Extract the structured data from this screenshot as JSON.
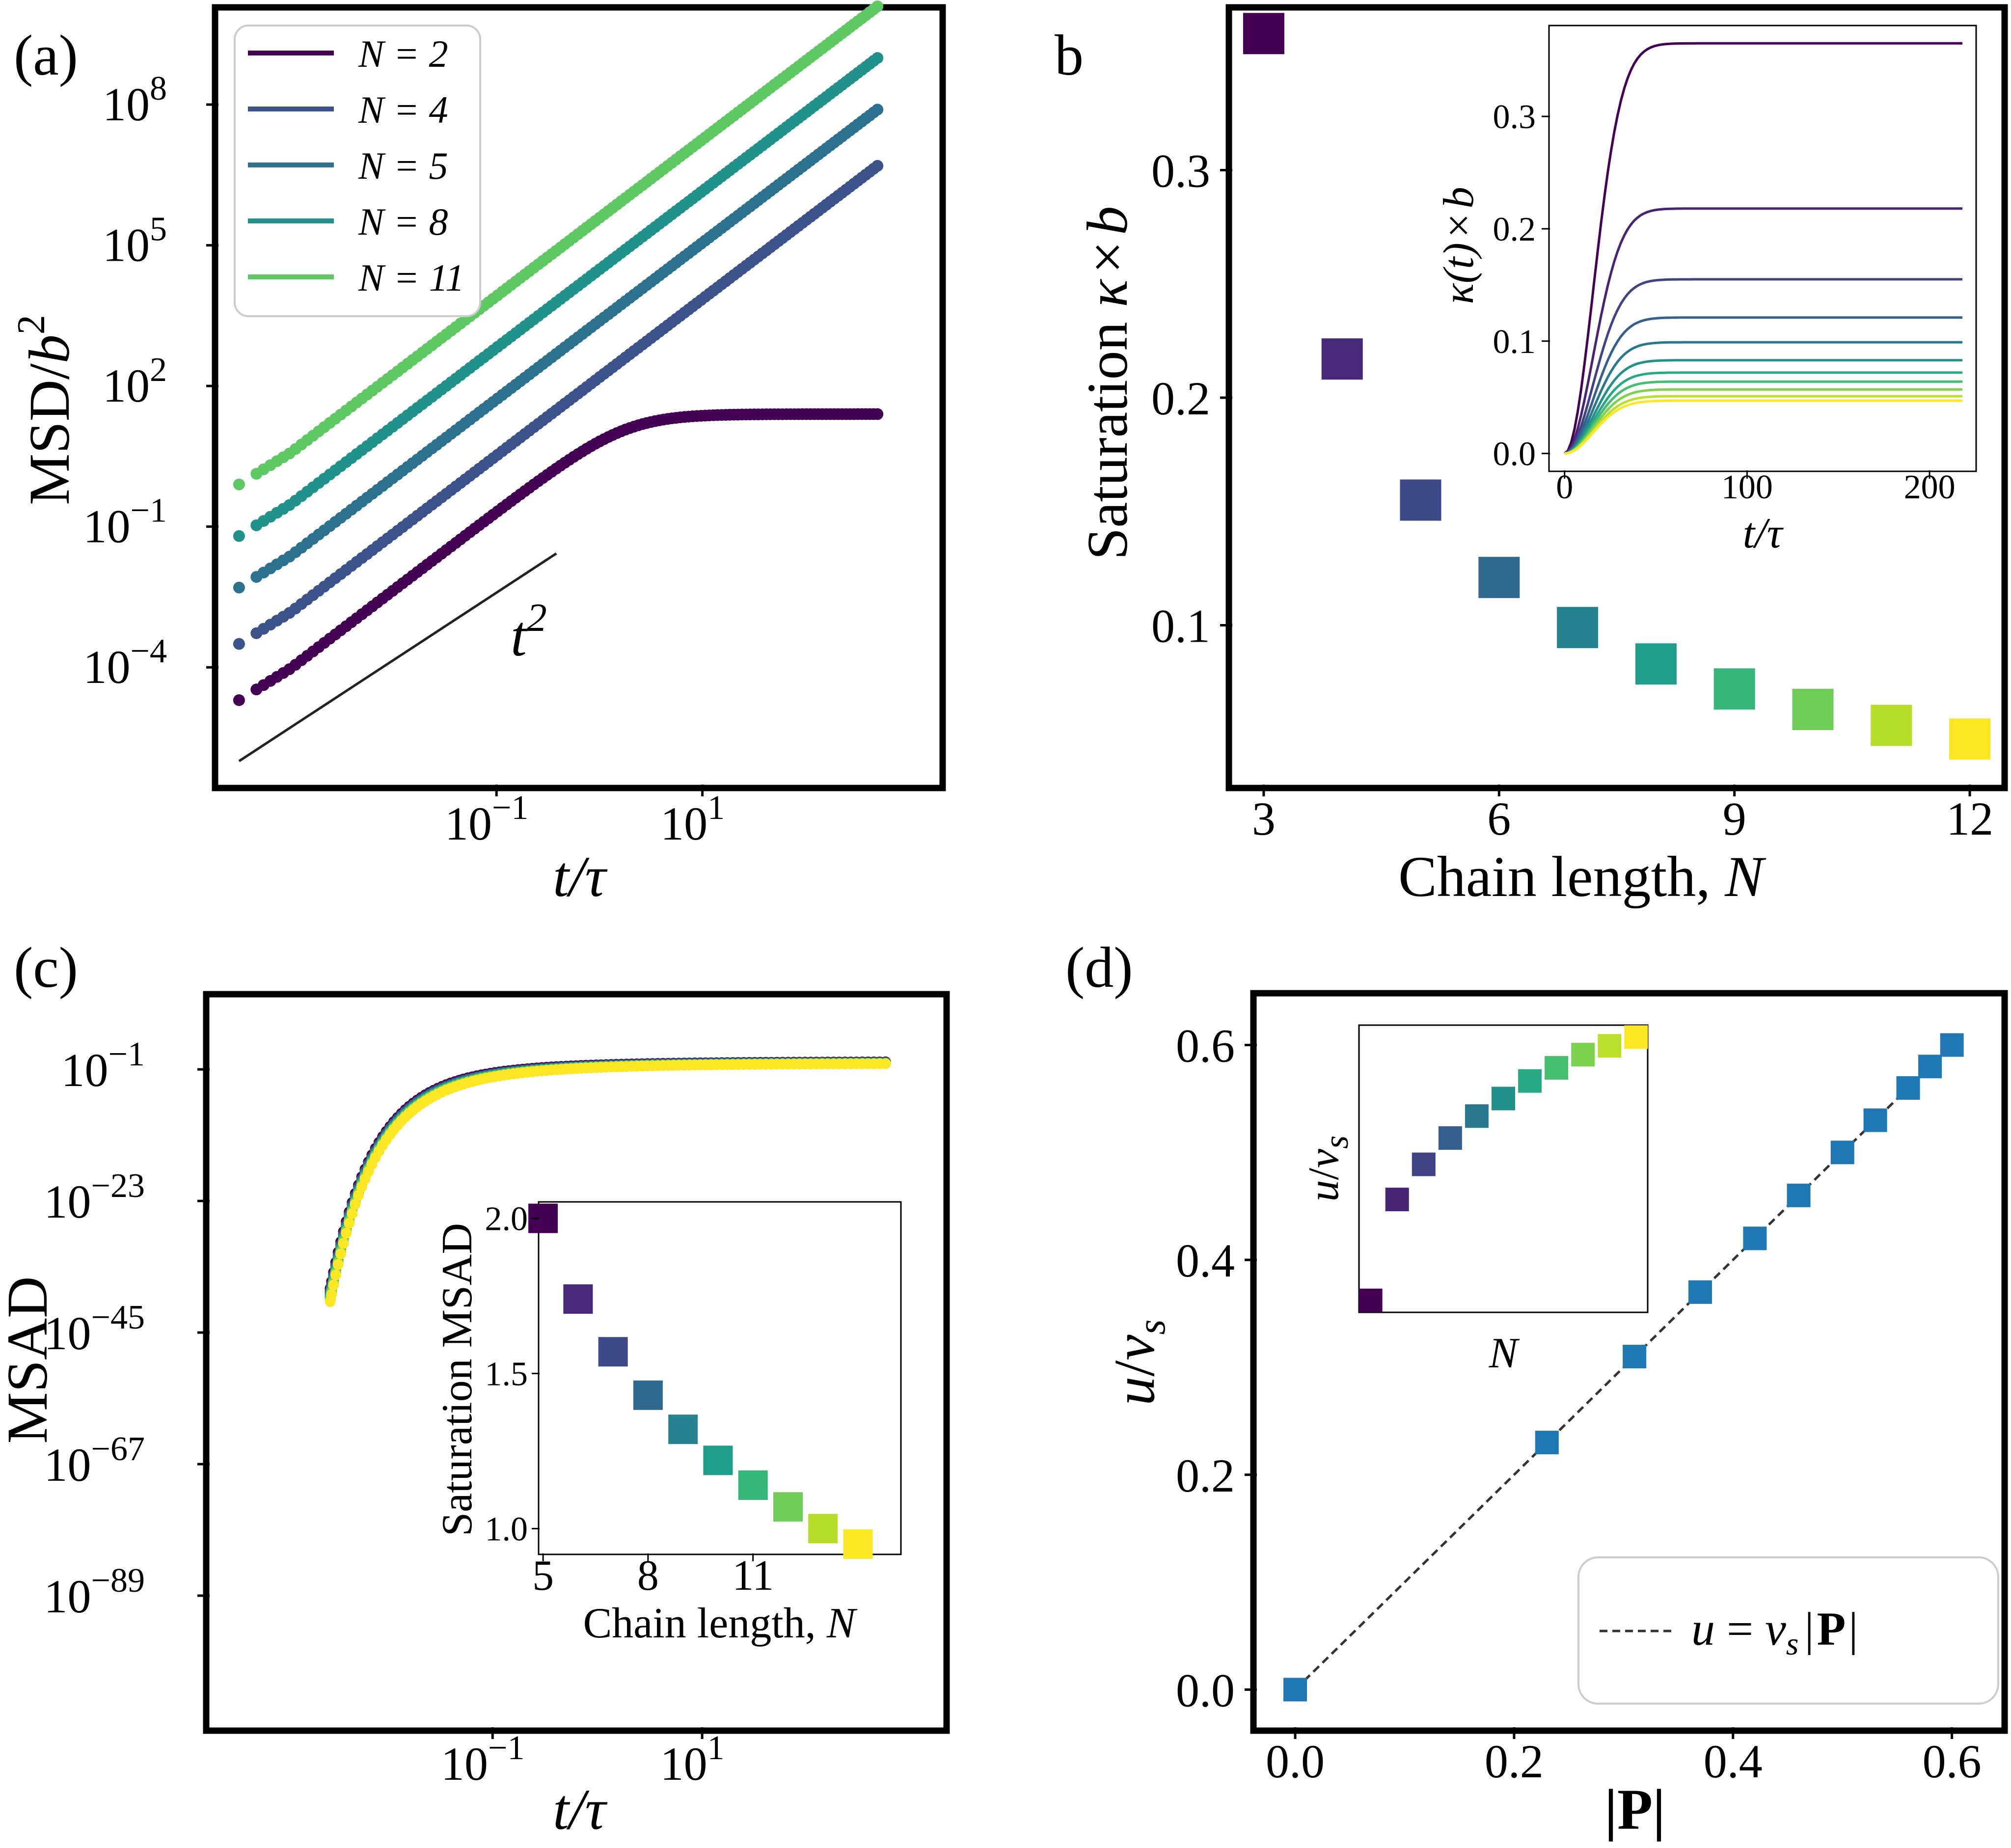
{
  "viridis": [
    "#440154",
    "#482878",
    "#3e4989",
    "#31688e",
    "#26828e",
    "#1f9e89",
    "#35b779",
    "#6ece58",
    "#b5de2b",
    "#fde725"
  ],
  "chart_data": [
    {
      "panel": "(a)",
      "type": "scatter",
      "title": "",
      "xlabel": "t/τ",
      "ylabel": "MSD/b²",
      "xscale": "log",
      "yscale": "log",
      "xlim_log10": [
        -3.7,
        3.3
      ],
      "ylim_log10": [
        -6.5,
        10.0
      ],
      "xticks": [
        {
          "exp": "-1",
          "label": "10",
          "sup": "−1"
        },
        {
          "exp": "1",
          "label": "10",
          "sup": "1"
        }
      ],
      "yticks": [
        {
          "exp": "-4",
          "label": "10",
          "sup": "−4"
        },
        {
          "exp": "-1",
          "label": "10",
          "sup": "−1"
        },
        {
          "exp": "2",
          "label": "10",
          "sup": "2"
        },
        {
          "exp": "5",
          "label": "10",
          "sup": "5"
        },
        {
          "exp": "8",
          "label": "10",
          "sup": "8"
        }
      ],
      "legend_position": "top-left",
      "series": [
        {
          "name": "N = 2",
          "N": "2",
          "color": "#440154",
          "log_t_start": -3.5,
          "log_t_end": 2.7,
          "log_msd_start": -4.7,
          "plateau_log_msd": 1.4
        },
        {
          "name": "N = 4",
          "N": "4",
          "color": "#3b528b",
          "log_t_start": -3.5,
          "log_t_end": 2.7,
          "log_msd_start": -3.5,
          "plateau_log_msd": null
        },
        {
          "name": "N = 5",
          "N": "5",
          "color": "#2c728e",
          "log_t_start": -3.5,
          "log_t_end": 2.7,
          "log_msd_start": -2.3,
          "plateau_log_msd": null
        },
        {
          "name": "N = 8",
          "N": "8",
          "color": "#21918c",
          "log_t_start": -3.5,
          "log_t_end": 2.7,
          "log_msd_start": -1.2,
          "plateau_log_msd": null
        },
        {
          "name": "N = 11",
          "N": "11",
          "color": "#5ec962",
          "log_t_start": -3.5,
          "log_t_end": 2.7,
          "log_msd_start": -0.1,
          "plateau_log_msd": null
        }
      ],
      "reference_line": {
        "label": "t",
        "sup": "2",
        "slope": 2,
        "log_t": [
          -3.5,
          -0.8
        ],
        "log_msd_start": -6.0
      }
    },
    {
      "panel": "(b)",
      "type": "scatter",
      "title": "",
      "xlabel": "Chain length, N",
      "ylabel": "Saturation κ × b",
      "xlim": [
        2.6,
        12.4
      ],
      "ylim": [
        0.03,
        0.37
      ],
      "xticks": [
        "3",
        "6",
        "9",
        "12"
      ],
      "yticks": [
        "0.1",
        "0.2",
        "0.3"
      ],
      "x": [
        3,
        4,
        5,
        6,
        7,
        8,
        9,
        10,
        11,
        12
      ],
      "y": [
        0.36,
        0.217,
        0.155,
        0.121,
        0.099,
        0.083,
        0.072,
        0.063,
        0.056,
        0.05
      ],
      "inset": {
        "type": "line",
        "xlabel": "t/τ",
        "ylabel": "κ(t) × b",
        "xlim": [
          -8,
          225
        ],
        "ylim": [
          -0.015,
          0.38
        ],
        "xticks": [
          "0",
          "100",
          "200"
        ],
        "yticks": [
          "0.0",
          "0.1",
          "0.2",
          "0.3"
        ],
        "t_end": 218,
        "time_constant": 22,
        "saturation": [
          0.365,
          0.218,
          0.155,
          0.121,
          0.099,
          0.083,
          0.072,
          0.064,
          0.057,
          0.051,
          0.047
        ]
      }
    },
    {
      "panel": "(c)",
      "type": "scatter",
      "title": "",
      "xlabel": "t/τ",
      "ylabel": "MSAD",
      "xscale": "log",
      "yscale": "log",
      "xlim_log10": [
        -3.7,
        3.3
      ],
      "ylim_log10": [
        -111,
        11
      ],
      "xticks": [
        {
          "exp": "-1",
          "label": "10",
          "sup": "−1"
        },
        {
          "exp": "1",
          "label": "10",
          "sup": "1"
        }
      ],
      "yticks": [
        {
          "exp": "-89",
          "label": "10",
          "sup": "−89"
        },
        {
          "exp": "-67",
          "label": "10",
          "sup": "−67"
        },
        {
          "exp": "-45",
          "label": "10",
          "sup": "−45"
        },
        {
          "exp": "-23",
          "label": "10",
          "sup": "−23"
        },
        {
          "exp": "-1",
          "label": "10",
          "sup": "−1"
        }
      ],
      "saturation_log10": [
        0.3,
        0.2,
        0.15,
        0.1,
        0.05,
        0.0
      ],
      "inset": {
        "xlabel": "Chain length, N",
        "ylabel": "Saturation MSAD",
        "xlim": [
          4.9,
          15.2
        ],
        "ylim": [
          0.92,
          2.05
        ],
        "xticks": [
          "5",
          "8",
          "11"
        ],
        "yticks": [
          "1.0",
          "1.5",
          "2.0"
        ],
        "x": [
          5,
          6,
          7,
          8,
          9,
          10,
          11,
          12,
          13,
          14
        ],
        "y": [
          2.0,
          1.74,
          1.57,
          1.43,
          1.32,
          1.22,
          1.14,
          1.07,
          1.0,
          0.95
        ]
      }
    },
    {
      "panel": "(d)",
      "type": "scatter",
      "title": "",
      "xlabel": "|P|",
      "ylabel": "u/vs",
      "xlim": [
        -0.035,
        0.645
      ],
      "ylim": [
        -0.035,
        0.645
      ],
      "xticks": [
        "0.0",
        "0.2",
        "0.4",
        "0.6"
      ],
      "yticks": [
        "0.0",
        "0.2",
        "0.4",
        "0.6"
      ],
      "x": [
        0.0,
        0.23,
        0.31,
        0.37,
        0.42,
        0.46,
        0.5,
        0.53,
        0.56,
        0.58,
        0.6
      ],
      "y": [
        0.0,
        0.23,
        0.31,
        0.37,
        0.42,
        0.46,
        0.5,
        0.53,
        0.56,
        0.58,
        0.6
      ],
      "marker_color": "#1f77b4",
      "fit_line": {
        "label": "u = vs|P|",
        "x": [
          0.0,
          0.61
        ]
      },
      "legend_position": "bottom-right",
      "inset": {
        "xlabel": "N",
        "ylabel": "u/vs",
        "x": [
          1,
          2,
          3,
          4,
          5,
          6,
          7,
          8,
          9,
          10,
          11
        ],
        "y": [
          0.0,
          0.23,
          0.31,
          0.37,
          0.42,
          0.46,
          0.5,
          0.53,
          0.56,
          0.58,
          0.6
        ]
      }
    }
  ],
  "labels": {
    "a": "(a)",
    "b": "b",
    "c": "(c)",
    "d": "(d)",
    "t_over_tau": "t/τ",
    "msd_main": "MSD/",
    "msd_b": "b",
    "msd_sq": "2",
    "saturation_kb_prefix": "Saturation ",
    "kappa": "κ",
    "times": "×",
    "chain_length_prefix": "Chain length, ",
    "N": "N",
    "kappa_t": "κ(t)",
    "msad": "MSAD",
    "saturation_msad": "Saturation MSAD",
    "u": "u",
    "slash": "/",
    "v": "v",
    "s": "s",
    "abs_P_bar": "|",
    "P": "P",
    "equals": "=",
    "t": "t",
    "two": "2"
  }
}
